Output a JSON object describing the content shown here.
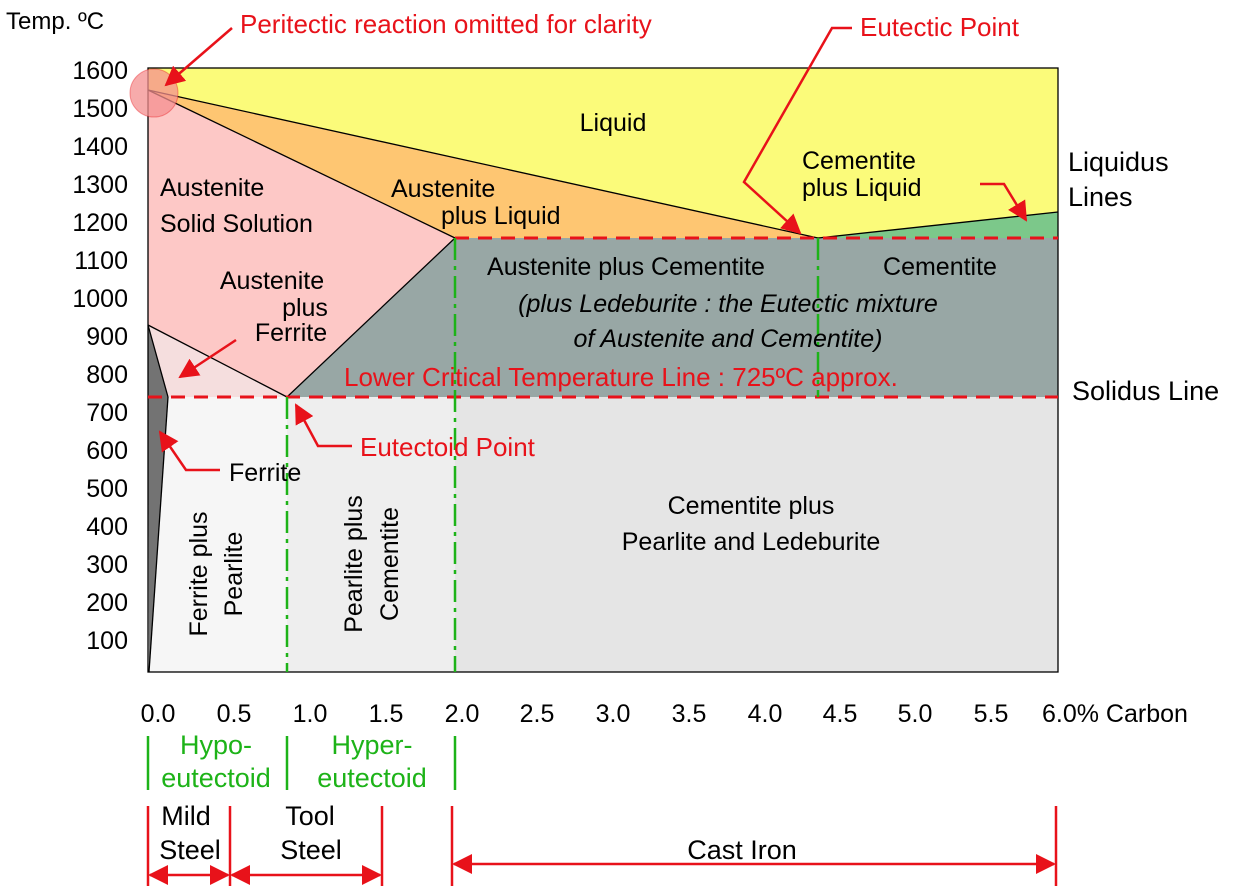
{
  "axes": {
    "y_title": "Temp. ºC",
    "x_title": "6.0% Carbon",
    "y_ticks": [
      "1600",
      "1500",
      "1400",
      "1300",
      "1200",
      "1100",
      "1000",
      "900",
      "800",
      "700",
      "600",
      "500",
      "400",
      "300",
      "200",
      "100"
    ],
    "x_ticks": [
      "0.0",
      "0.5",
      "1.0",
      "1.5",
      "2.0",
      "2.5",
      "3.0",
      "3.5",
      "4.0",
      "4.5",
      "5.0",
      "5.5"
    ]
  },
  "regions": {
    "liquid": "Liquid",
    "austenite_ss_1": "Austenite",
    "austenite_ss_2": "Solid Solution",
    "aust_liq_1": "Austenite",
    "aust_liq_2": "plus Liquid",
    "cem_liq_1": "Cementite",
    "cem_liq_2": "plus Liquid",
    "aust_ferr_1": "Austenite",
    "aust_ferr_2": "plus",
    "aust_ferr_3": "Ferrite",
    "aust_cem": "Austenite plus Cementite",
    "ledeburite_1": "(plus Ledeburite : the Eutectic mixture",
    "ledeburite_2": "of Austenite and Cementite)",
    "cementite": "Cementite",
    "ferrite": "Ferrite",
    "ferr_pearl_1": "Ferrite plus",
    "ferr_pearl_2": "Pearlite",
    "pearl_cem_1": "Pearlite plus",
    "pearl_cem_2": "Cementite",
    "cem_pearl_led_1": "Cementite plus",
    "cem_pearl_led_2": "Pearlite and Ledeburite"
  },
  "annotations": {
    "peritectic": "Peritectic reaction omitted for clarity",
    "eutectic_point": "Eutectic Point",
    "eutectoid_point": "Eutectoid Point",
    "lower_critical": "Lower Critical  Temperature Line : 725ºC approx.",
    "liquidus_1": "Liquidus",
    "liquidus_2": "Lines",
    "solidus": "Solidus Line"
  },
  "classification": {
    "hypo_1": "Hypo-",
    "hypo_2": "eutectoid",
    "hyper_1": "Hyper-",
    "hyper_2": "eutectoid",
    "mild_1": "Mild",
    "mild_2": "Steel",
    "tool_1": "Tool",
    "tool_2": "Steel",
    "cast_iron": "Cast Iron"
  },
  "colors": {
    "liquid": "#fbfb7a",
    "austenite": "#fdc8c6",
    "aust_liquid": "#fec672",
    "aust_cem": "#98a7a5",
    "cementite_green": "#7cc88a",
    "lower_band": "#e5e5e5",
    "red": "#e8121a",
    "green": "#1db318"
  }
}
